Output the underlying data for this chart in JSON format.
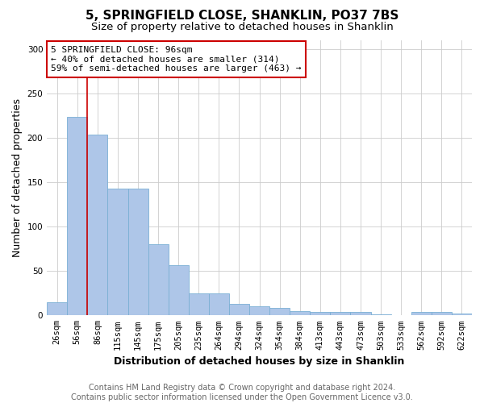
{
  "title": "5, SPRINGFIELD CLOSE, SHANKLIN, PO37 7BS",
  "subtitle": "Size of property relative to detached houses in Shanklin",
  "xlabel": "Distribution of detached houses by size in Shanklin",
  "ylabel": "Number of detached properties",
  "footer_line1": "Contains HM Land Registry data © Crown copyright and database right 2024.",
  "footer_line2": "Contains public sector information licensed under the Open Government Licence v3.0.",
  "categories": [
    "26sqm",
    "56sqm",
    "86sqm",
    "115sqm",
    "145sqm",
    "175sqm",
    "205sqm",
    "235sqm",
    "264sqm",
    "294sqm",
    "324sqm",
    "354sqm",
    "384sqm",
    "413sqm",
    "443sqm",
    "473sqm",
    "503sqm",
    "533sqm",
    "562sqm",
    "592sqm",
    "622sqm"
  ],
  "values": [
    15,
    224,
    204,
    143,
    143,
    80,
    57,
    25,
    25,
    13,
    10,
    8,
    5,
    4,
    4,
    4,
    1,
    0,
    4,
    4,
    2
  ],
  "bar_color": "#aec6e8",
  "bar_edge_color": "#7aafd4",
  "property_line_x": 1.5,
  "property_line_color": "#cc0000",
  "annotation_text": "5 SPRINGFIELD CLOSE: 96sqm\n← 40% of detached houses are smaller (314)\n59% of semi-detached houses are larger (463) →",
  "annotation_box_color": "#ffffff",
  "annotation_box_edge_color": "#cc0000",
  "ylim": [
    0,
    310
  ],
  "yticks": [
    0,
    50,
    100,
    150,
    200,
    250,
    300
  ],
  "background_color": "#ffffff",
  "grid_color": "#cccccc",
  "title_fontsize": 11,
  "subtitle_fontsize": 9.5,
  "axis_label_fontsize": 9,
  "tick_fontsize": 7.5,
  "annotation_fontsize": 8,
  "footer_fontsize": 7
}
